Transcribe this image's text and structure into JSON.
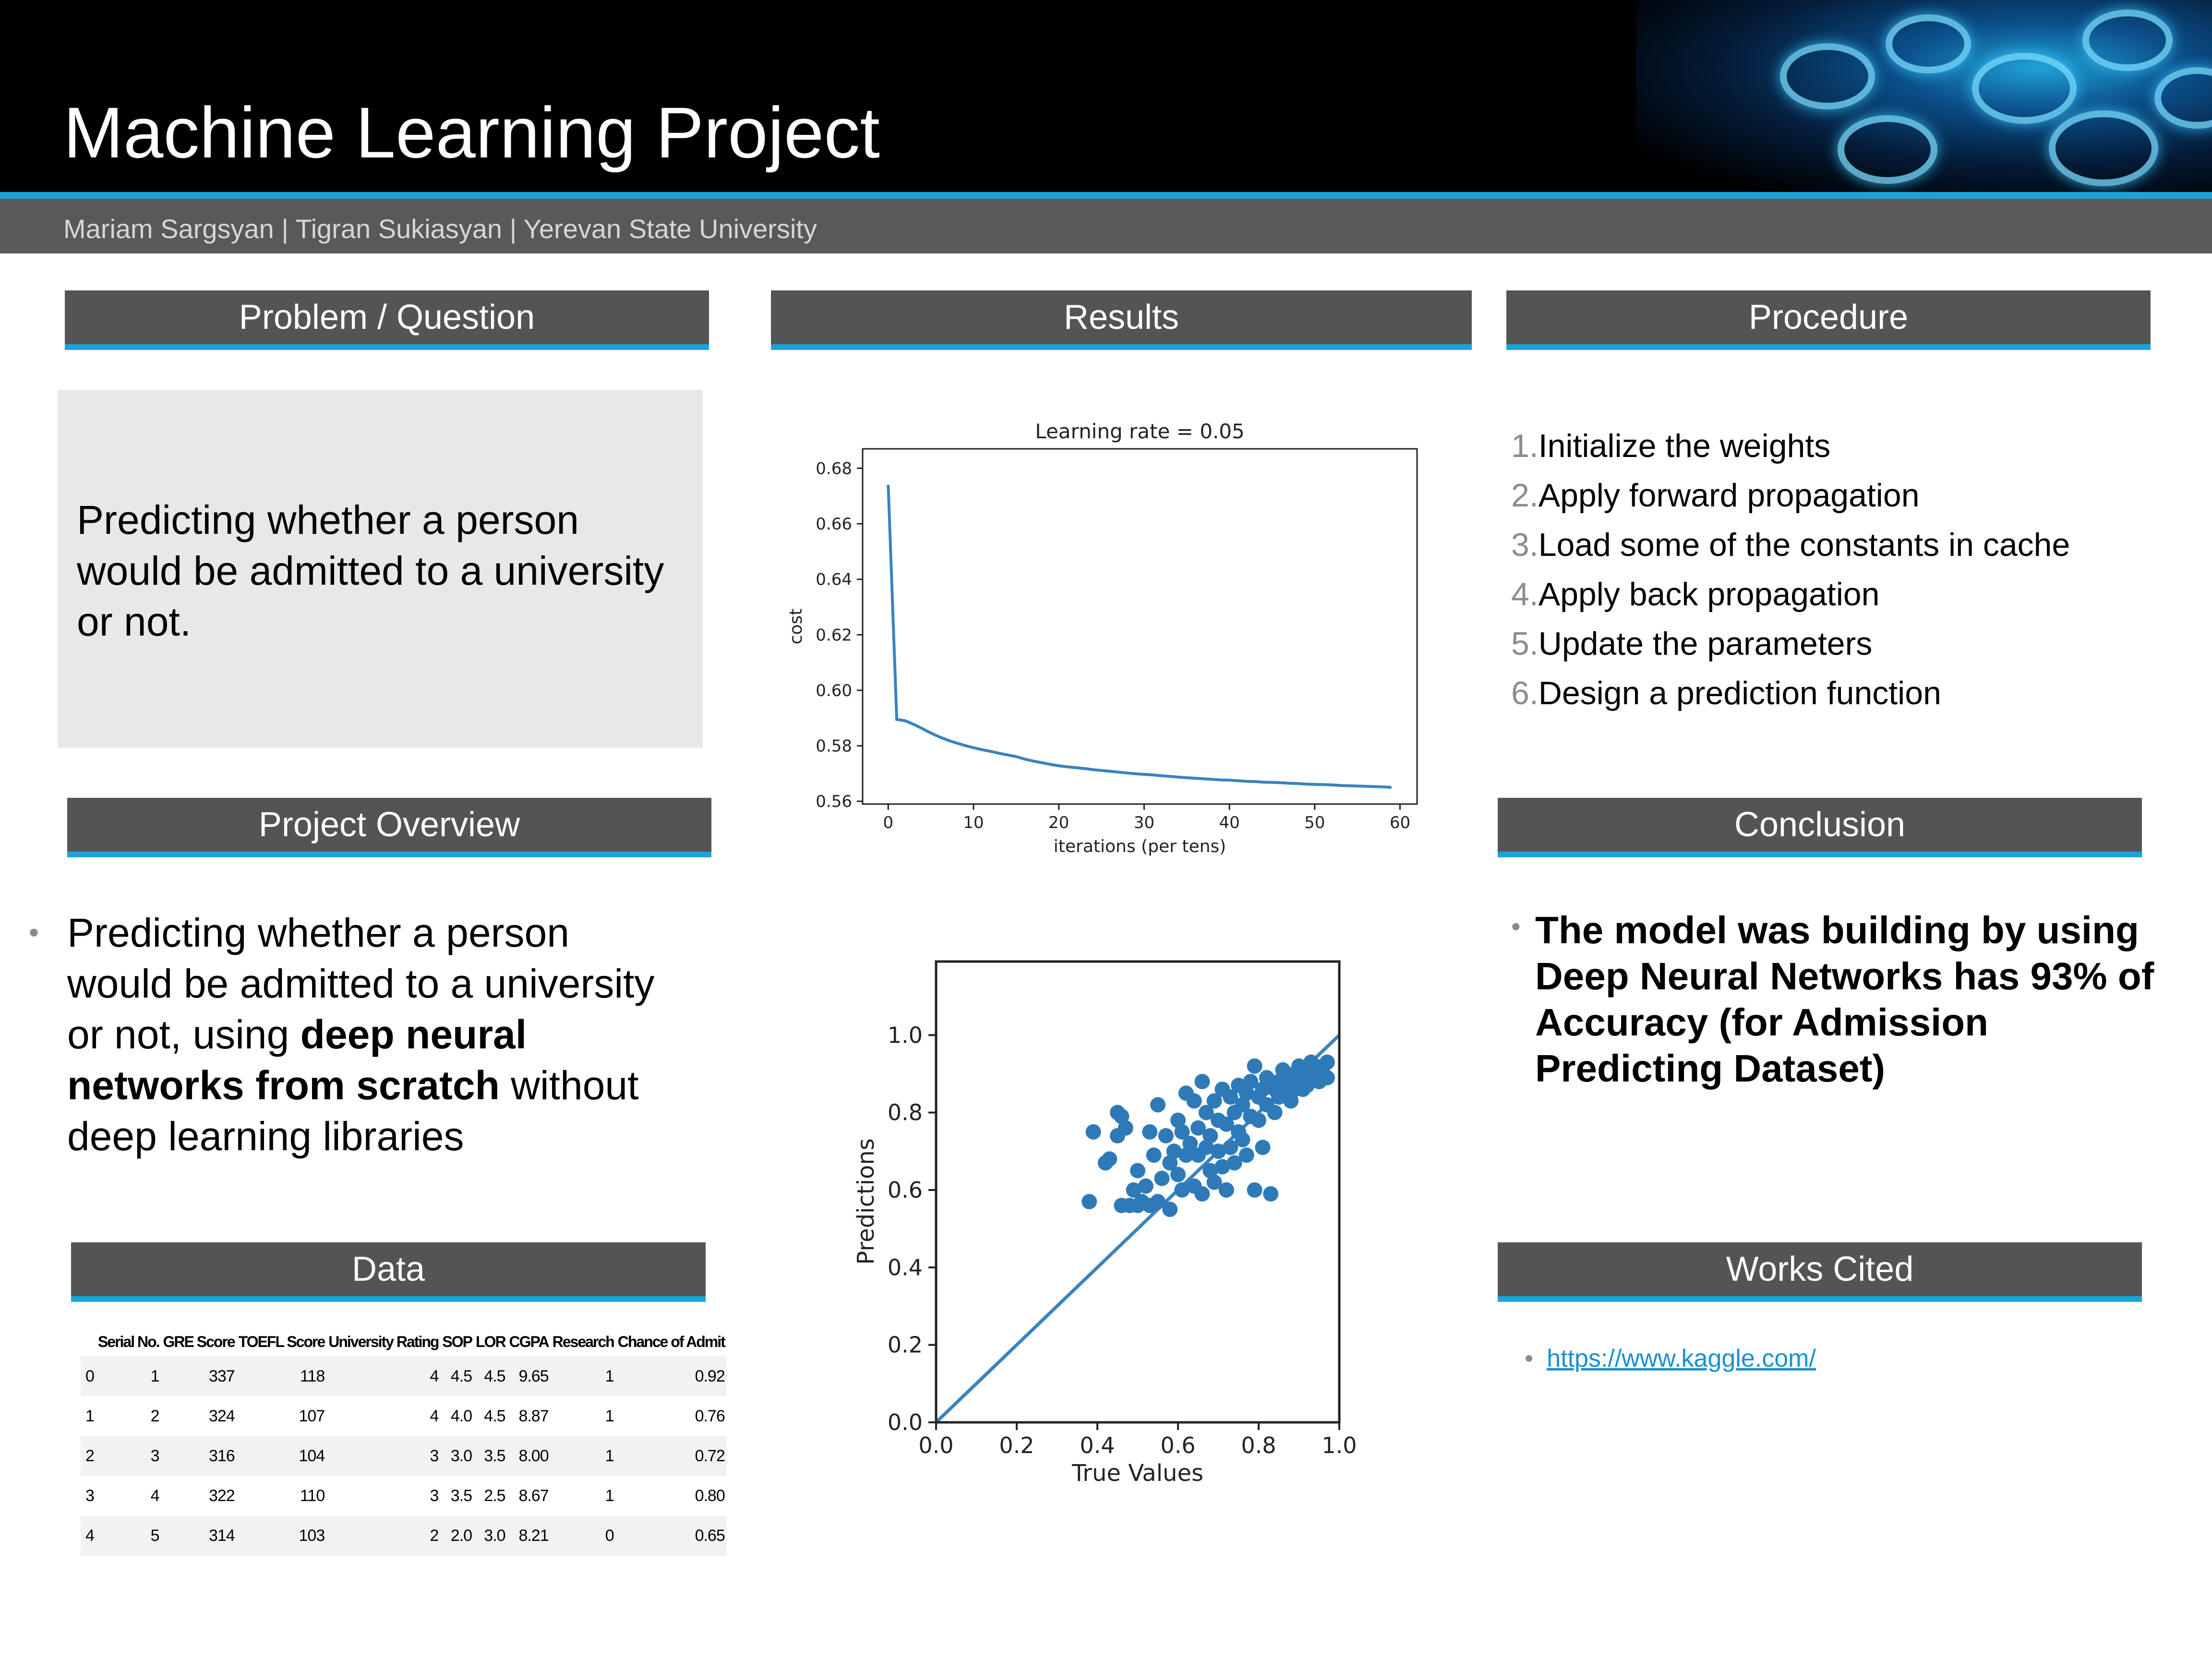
{
  "poster": {
    "title": "Machine Learning Project",
    "authors": "Mariam Sargsyan | Tigran Sukiasyan | Yerevan State University"
  },
  "sections": {
    "problem": "Problem / Question",
    "results": "Results",
    "procedure": "Procedure",
    "overview": "Project Overview",
    "conclusion": "Conclusion",
    "data": "Data",
    "works_cited": "Works Cited"
  },
  "problem_text": "Predicting whether a person would be admitted to a university or not.",
  "overview": {
    "bullet": "•",
    "part1": "Predicting whether a person would be admitted to a university or not, using ",
    "bold": "deep neural networks from scratch",
    "part2": " without deep learning libraries"
  },
  "procedure_steps": [
    {
      "num": "1.",
      "text": "Initialize the weights"
    },
    {
      "num": "2.",
      "text": "Apply forward propagation"
    },
    {
      "num": "3.",
      "text": "Load some of the constants in cache"
    },
    {
      "num": "4.",
      "text": "Apply back propagation"
    },
    {
      "num": "5.",
      "text": "Update the parameters"
    },
    {
      "num": "6.",
      "text": "Design a prediction function"
    }
  ],
  "conclusion_text": "The model was building by using Deep Neural Networks has 93% of Accuracy (for Admission Predicting Dataset)",
  "works_cited": {
    "bullet": "•",
    "link": "https://www.kaggle.com/"
  },
  "data_table": {
    "headers": [
      "",
      "Serial No.",
      "GRE Score",
      "TOEFL Score",
      "University Rating",
      "SOP",
      "LOR",
      "CGPA",
      "Research",
      "Chance of Admit"
    ],
    "rows": [
      [
        "0",
        "1",
        "337",
        "118",
        "4",
        "4.5",
        "4.5",
        "9.65",
        "1",
        "0.92"
      ],
      [
        "1",
        "2",
        "324",
        "107",
        "4",
        "4.0",
        "4.5",
        "8.87",
        "1",
        "0.76"
      ],
      [
        "2",
        "3",
        "316",
        "104",
        "3",
        "3.0",
        "3.5",
        "8.00",
        "1",
        "0.72"
      ],
      [
        "3",
        "4",
        "322",
        "110",
        "3",
        "3.5",
        "2.5",
        "8.67",
        "1",
        "0.80"
      ],
      [
        "4",
        "5",
        "314",
        "103",
        "2",
        "2.0",
        "3.0",
        "8.21",
        "0",
        "0.65"
      ]
    ]
  },
  "chart_data": [
    {
      "type": "line",
      "title": "Learning rate = 0.05",
      "xlabel": "iterations (per tens)",
      "ylabel": "cost",
      "xlim": [
        -3,
        62
      ],
      "ylim": [
        0.559,
        0.687
      ],
      "xticks": [
        0,
        10,
        20,
        30,
        40,
        50,
        60
      ],
      "xtick_labels": [
        "0",
        "10",
        "20",
        "30",
        "40",
        "50",
        "60"
      ],
      "yticks": [
        0.56,
        0.58,
        0.6,
        0.62,
        0.64,
        0.66,
        0.68
      ],
      "ytick_labels": [
        "0.56",
        "0.58",
        "0.60",
        "0.62",
        "0.64",
        "0.66",
        "0.68"
      ],
      "color": "#3a83bd",
      "x": [
        0,
        1,
        2,
        3,
        4,
        5,
        6,
        7,
        8,
        9,
        10,
        11,
        12,
        13,
        14,
        15,
        16,
        17,
        18,
        19,
        20,
        21,
        22,
        23,
        24,
        25,
        26,
        27,
        28,
        29,
        30,
        31,
        32,
        33,
        34,
        35,
        36,
        37,
        38,
        39,
        40,
        41,
        42,
        43,
        44,
        45,
        46,
        47,
        48,
        49,
        50,
        51,
        52,
        53,
        54,
        55,
        56,
        57,
        58,
        59
      ],
      "y": [
        0.674,
        0.5895,
        0.589,
        0.5877,
        0.5862,
        0.5846,
        0.5832,
        0.582,
        0.581,
        0.5801,
        0.5793,
        0.5786,
        0.578,
        0.5773,
        0.5767,
        0.5761,
        0.5752,
        0.5745,
        0.5739,
        0.5733,
        0.5728,
        0.5724,
        0.5721,
        0.5718,
        0.5714,
        0.5711,
        0.5708,
        0.5705,
        0.5702,
        0.5699,
        0.5697,
        0.5695,
        0.5692,
        0.569,
        0.5687,
        0.5685,
        0.5683,
        0.5681,
        0.5679,
        0.5677,
        0.5676,
        0.5674,
        0.5672,
        0.5671,
        0.5669,
        0.5668,
        0.5667,
        0.5665,
        0.5664,
        0.5662,
        0.5661,
        0.566,
        0.5659,
        0.5657,
        0.5656,
        0.5655,
        0.5654,
        0.5653,
        0.5652,
        0.565
      ],
      "grid": false
    },
    {
      "type": "scatter",
      "title": "",
      "xlabel": "True Values",
      "ylabel": "Predictions",
      "xlim": [
        0.0,
        1.0
      ],
      "ylim": [
        0.0,
        1.19
      ],
      "xticks": [
        0.0,
        0.2,
        0.4,
        0.6,
        0.8,
        1.0
      ],
      "xtick_labels": [
        "0.0",
        "0.2",
        "0.4",
        "0.6",
        "0.8",
        "1.0"
      ],
      "yticks": [
        0.0,
        0.2,
        0.4,
        0.6,
        0.8,
        1.0
      ],
      "ytick_labels": [
        "0.0",
        "0.2",
        "0.4",
        "0.6",
        "0.8",
        "1.0"
      ],
      "color": "#2e7ab8",
      "reference_line": [
        [
          0.0,
          0.0
        ],
        [
          1.0,
          1.0
        ]
      ],
      "points": [
        [
          0.38,
          0.57
        ],
        [
          0.39,
          0.75
        ],
        [
          0.42,
          0.67
        ],
        [
          0.43,
          0.68
        ],
        [
          0.45,
          0.74
        ],
        [
          0.45,
          0.8
        ],
        [
          0.46,
          0.79
        ],
        [
          0.46,
          0.56
        ],
        [
          0.47,
          0.76
        ],
        [
          0.48,
          0.56
        ],
        [
          0.49,
          0.6
        ],
        [
          0.5,
          0.65
        ],
        [
          0.5,
          0.56
        ],
        [
          0.51,
          0.57
        ],
        [
          0.52,
          0.61
        ],
        [
          0.53,
          0.75
        ],
        [
          0.53,
          0.56
        ],
        [
          0.54,
          0.69
        ],
        [
          0.55,
          0.82
        ],
        [
          0.55,
          0.57
        ],
        [
          0.56,
          0.63
        ],
        [
          0.57,
          0.74
        ],
        [
          0.58,
          0.55
        ],
        [
          0.58,
          0.67
        ],
        [
          0.59,
          0.7
        ],
        [
          0.6,
          0.64
        ],
        [
          0.6,
          0.78
        ],
        [
          0.61,
          0.75
        ],
        [
          0.61,
          0.6
        ],
        [
          0.62,
          0.69
        ],
        [
          0.62,
          0.85
        ],
        [
          0.63,
          0.72
        ],
        [
          0.64,
          0.61
        ],
        [
          0.64,
          0.83
        ],
        [
          0.65,
          0.69
        ],
        [
          0.65,
          0.76
        ],
        [
          0.66,
          0.59
        ],
        [
          0.66,
          0.88
        ],
        [
          0.67,
          0.71
        ],
        [
          0.67,
          0.8
        ],
        [
          0.68,
          0.65
        ],
        [
          0.68,
          0.74
        ],
        [
          0.69,
          0.62
        ],
        [
          0.69,
          0.83
        ],
        [
          0.7,
          0.78
        ],
        [
          0.7,
          0.7
        ],
        [
          0.71,
          0.86
        ],
        [
          0.71,
          0.66
        ],
        [
          0.72,
          0.6
        ],
        [
          0.72,
          0.77
        ],
        [
          0.73,
          0.84
        ],
        [
          0.73,
          0.71
        ],
        [
          0.74,
          0.8
        ],
        [
          0.74,
          0.67
        ],
        [
          0.75,
          0.75
        ],
        [
          0.75,
          0.87
        ],
        [
          0.76,
          0.82
        ],
        [
          0.76,
          0.73
        ],
        [
          0.77,
          0.85
        ],
        [
          0.77,
          0.69
        ],
        [
          0.78,
          0.79
        ],
        [
          0.78,
          0.88
        ],
        [
          0.79,
          0.6
        ],
        [
          0.8,
          0.84
        ],
        [
          0.8,
          0.78
        ],
        [
          0.81,
          0.86
        ],
        [
          0.81,
          0.71
        ],
        [
          0.82,
          0.89
        ],
        [
          0.82,
          0.82
        ],
        [
          0.83,
          0.59
        ],
        [
          0.84,
          0.86
        ],
        [
          0.84,
          0.8
        ],
        [
          0.85,
          0.88
        ],
        [
          0.85,
          0.84
        ],
        [
          0.86,
          0.87
        ],
        [
          0.87,
          0.85
        ],
        [
          0.87,
          0.9
        ],
        [
          0.88,
          0.87
        ],
        [
          0.88,
          0.83
        ],
        [
          0.89,
          0.9
        ],
        [
          0.89,
          0.86
        ],
        [
          0.9,
          0.88
        ],
        [
          0.9,
          0.92
        ],
        [
          0.91,
          0.89
        ],
        [
          0.91,
          0.86
        ],
        [
          0.92,
          0.91
        ],
        [
          0.92,
          0.88
        ],
        [
          0.93,
          0.93
        ],
        [
          0.93,
          0.9
        ],
        [
          0.94,
          0.89
        ],
        [
          0.94,
          0.92
        ],
        [
          0.95,
          0.91
        ],
        [
          0.95,
          0.88
        ],
        [
          0.96,
          0.92
        ],
        [
          0.96,
          0.9
        ],
        [
          0.97,
          0.93
        ],
        [
          0.97,
          0.89
        ],
        [
          0.92,
          0.87
        ],
        [
          0.86,
          0.91
        ],
        [
          0.79,
          0.92
        ]
      ],
      "grid": false
    }
  ]
}
